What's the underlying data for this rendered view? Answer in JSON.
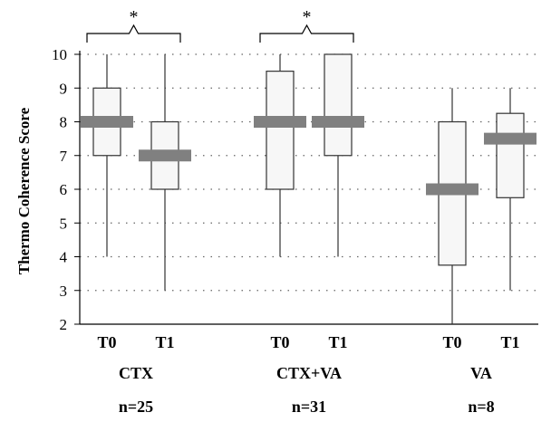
{
  "chart_data": {
    "type": "boxplot",
    "ylabel": "Thermo Coherence Score",
    "ylim": [
      2,
      10
    ],
    "yticks": [
      2,
      3,
      4,
      5,
      6,
      7,
      8,
      9,
      10
    ],
    "grid": "dotted horizontal",
    "groups": [
      {
        "name": "CTX",
        "n_label": "n=25",
        "boxes": [
          {
            "label": "T0",
            "min": 4,
            "q1": 7,
            "median": 8,
            "q3": 9,
            "max": 10
          },
          {
            "label": "T1",
            "min": 3,
            "q1": 6,
            "median": 7,
            "q3": 8,
            "max": 10
          }
        ],
        "significance": "*"
      },
      {
        "name": "CTX+VA",
        "n_label": "n=31",
        "boxes": [
          {
            "label": "T0",
            "min": 4,
            "q1": 6,
            "median": 8,
            "q3": 9.5,
            "max": 10
          },
          {
            "label": "T1",
            "min": 4,
            "q1": 7,
            "median": 8,
            "q3": 10,
            "max": 10
          }
        ],
        "significance": "*"
      },
      {
        "name": "VA",
        "n_label": "n=8",
        "boxes": [
          {
            "label": "T0",
            "min": 2,
            "q1": 3.75,
            "median": 6,
            "q3": 8,
            "max": 9
          },
          {
            "label": "T1",
            "min": 3,
            "q1": 5.75,
            "median": 7.5,
            "q3": 8.25,
            "max": 9
          }
        ],
        "significance": ""
      }
    ],
    "colors": {
      "box_fill": "#f7f7f7",
      "box_stroke": "#333333",
      "median": "#808080",
      "grid": "#666666",
      "axis": "#000000"
    }
  }
}
